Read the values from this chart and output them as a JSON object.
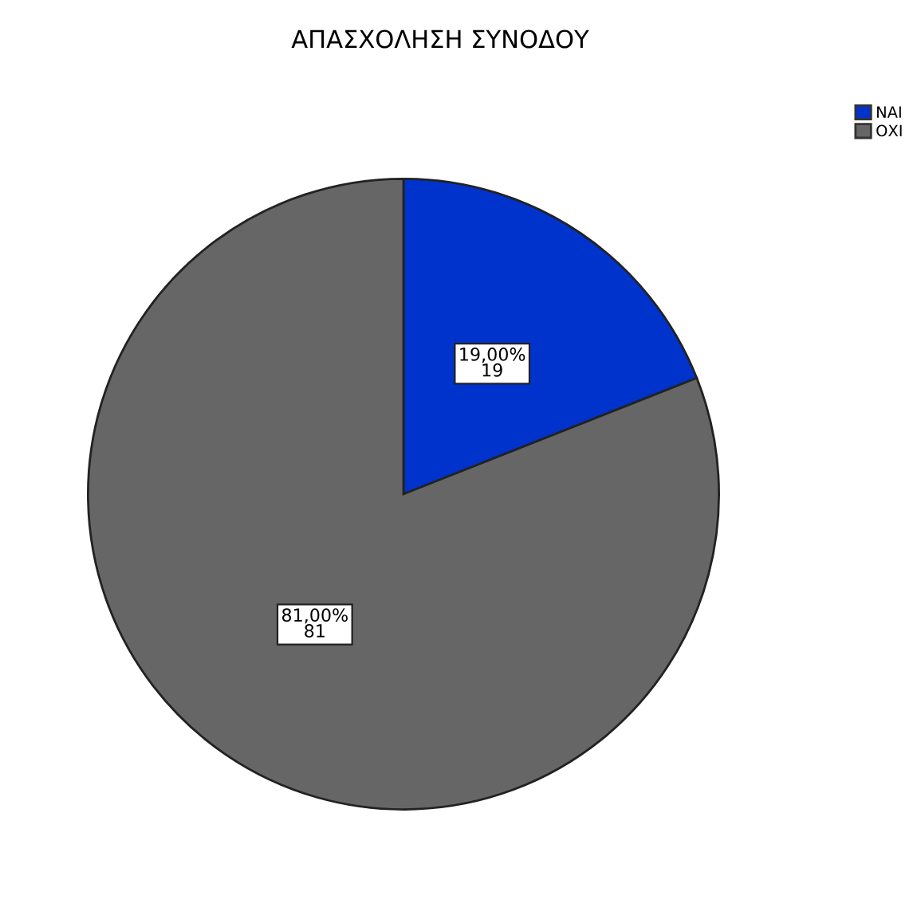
{
  "chart_data": {
    "type": "pie",
    "title": "ΑΠΑΣΧΟΛΗΣΗ ΣΥΝΟΔΟΥ",
    "categories": [
      "ΝΑΙ",
      "ΟΧΙ"
    ],
    "values": [
      19,
      81
    ],
    "colors": [
      "#0033cc",
      "#666666"
    ],
    "value_labels": [
      "19,00%\n19",
      "81,00%\n81"
    ],
    "legend": "top right"
  }
}
